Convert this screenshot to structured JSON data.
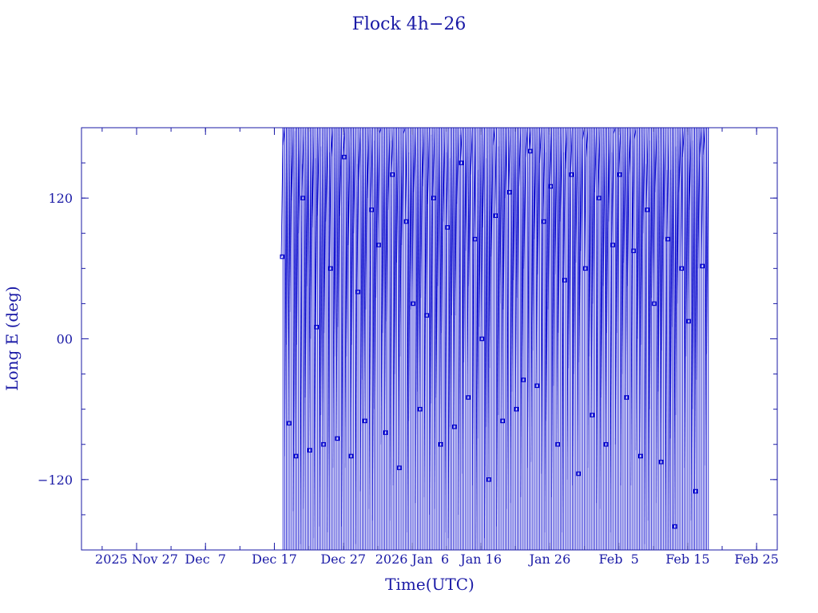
{
  "chart_data": {
    "type": "line",
    "title": "Flock 4h−26",
    "xlabel": "Time(UTC)",
    "ylabel": "Long E (deg)",
    "x_tick_labels": [
      "2025 Nov 27",
      "Dec  7",
      "Dec 17",
      "Dec 27",
      "2026 Jan  6",
      "Jan 16",
      "Jan 26",
      "Feb  5",
      "Feb 15",
      "Feb 25"
    ],
    "x_tick_dates": [
      "2025-11-27",
      "2025-12-07",
      "2025-12-17",
      "2025-12-27",
      "2026-01-06",
      "2026-01-16",
      "2026-01-26",
      "2026-02-05",
      "2026-02-15",
      "2026-02-25"
    ],
    "xlim": [
      "2025-11-19",
      "2026-02-28"
    ],
    "y_tick_labels": [
      "−120",
      "00",
      "120"
    ],
    "y_tick_values": [
      -120,
      0,
      120
    ],
    "ylim": [
      -180,
      180
    ],
    "grid": false,
    "colors": {
      "axes": "#1a1aa6",
      "series": "#0000cc"
    },
    "series": [
      {
        "x": [
          "2025-12-18",
          "2025-12-19",
          "2025-12-20",
          "2025-12-21",
          "2025-12-22",
          "2025-12-23",
          "2025-12-24",
          "2025-12-25",
          "2025-12-26",
          "2025-12-27",
          "2025-12-28",
          "2025-12-29",
          "2025-12-30",
          "2025-12-31",
          "2026-01-01",
          "2026-01-02",
          "2026-01-03",
          "2026-01-04",
          "2026-01-05",
          "2026-01-06",
          "2026-01-07",
          "2026-01-08",
          "2026-01-09",
          "2026-01-10",
          "2026-01-11",
          "2026-01-12",
          "2026-01-13",
          "2026-01-14",
          "2026-01-15",
          "2026-01-16",
          "2026-01-17",
          "2026-01-18",
          "2026-01-19",
          "2026-01-20",
          "2026-01-21",
          "2026-01-22",
          "2026-01-23",
          "2026-01-24",
          "2026-01-25",
          "2026-01-26",
          "2026-01-27",
          "2026-01-28",
          "2026-01-29",
          "2026-01-30",
          "2026-01-31",
          "2026-02-01",
          "2026-02-02",
          "2026-02-03",
          "2026-02-04",
          "2026-02-05",
          "2026-02-06",
          "2026-02-07",
          "2026-02-08",
          "2026-02-09",
          "2026-02-10",
          "2026-02-11",
          "2026-02-12",
          "2026-02-13",
          "2026-02-14",
          "2026-02-15",
          "2026-02-16",
          "2026-02-17"
        ],
        "y": [
          70,
          -72,
          -100,
          120,
          -95,
          10,
          -90,
          60,
          -85,
          155,
          -100,
          40,
          -70,
          110,
          80,
          -80,
          140,
          -110,
          100,
          30,
          -60,
          20,
          120,
          -90,
          95,
          -75,
          150,
          -50,
          85,
          0,
          -120,
          105,
          -70,
          125,
          -60,
          -35,
          160,
          -40,
          100,
          130,
          -90,
          50,
          140,
          -115,
          60,
          -65,
          120,
          -90,
          80,
          140,
          -50,
          75,
          -100,
          110,
          30,
          -105,
          85,
          -160,
          60,
          15,
          -130,
          62
        ]
      }
    ]
  }
}
